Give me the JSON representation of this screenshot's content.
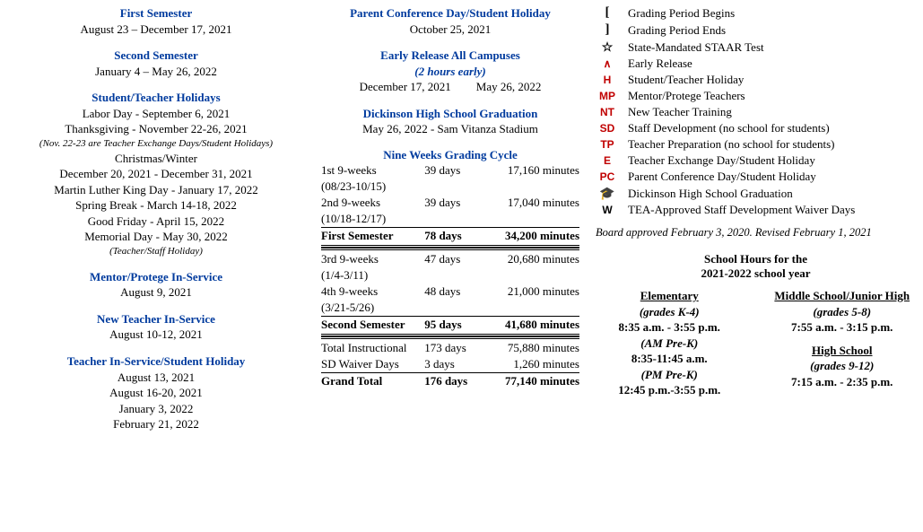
{
  "left": {
    "sem1": {
      "title": "First Semester",
      "range": "August 23 – December 17, 2021"
    },
    "sem2": {
      "title": "Second Semester",
      "range": "January 4 – May 26, 2022"
    },
    "holidays": {
      "title": "Student/Teacher Holidays",
      "lines": [
        "Labor Day - September 6, 2021",
        "Thanksgiving - November 22-26, 2021"
      ],
      "note": "(Nov. 22-23 are Teacher Exchange Days/Student Holidays)",
      "more": [
        "Christmas/Winter",
        "December 20, 2021 - December 31, 2021",
        "Martin Luther King Day - January 17, 2022",
        "Spring Break - March 14-18, 2022",
        "Good Friday - April 15, 2022",
        "Memorial Day - May 30, 2022"
      ],
      "note2": "(Teacher/Staff Holiday)"
    },
    "mentor": {
      "title": "Mentor/Protege In-Service",
      "date": "August 9, 2021"
    },
    "newteacher": {
      "title": "New Teacher In-Service",
      "date": "August 10-12, 2021"
    },
    "inservice": {
      "title": "Teacher In-Service/Student Holiday",
      "dates": [
        "August 13, 2021",
        "August 16-20, 2021",
        "January 3, 2022",
        "February 21, 2022"
      ]
    }
  },
  "mid": {
    "pcd": {
      "title": "Parent Conference Day/Student Holiday",
      "date": "October 25, 2021"
    },
    "early": {
      "title": "Early Release All Campuses",
      "sub": "(2 hours early)",
      "d1": "December 17, 2021",
      "d2": "May 26, 2022"
    },
    "grad": {
      "title": "Dickinson High School Graduation",
      "date": "May 26, 2022 - Sam Vitanza Stadium"
    },
    "cycle": {
      "title": "Nine Weeks Grading Cycle"
    },
    "rows": {
      "r1a": {
        "c1": "1st 9-weeks",
        "c2": "39 days",
        "c3": "17,160 minutes"
      },
      "r1b": {
        "c1": "(08/23-10/15)"
      },
      "r2a": {
        "c1": "2nd 9-weeks",
        "c2": "39 days",
        "c3": "17,040 minutes"
      },
      "r2b": {
        "c1": "(10/18-12/17)"
      },
      "s1": {
        "c1": "First Semester",
        "c2": "78 days",
        "c3": "34,200 minutes"
      },
      "r3a": {
        "c1": "3rd 9-weeks",
        "c2": "47 days",
        "c3": "20,680 minutes"
      },
      "r3b": {
        "c1": "(1/4-3/11)"
      },
      "r4a": {
        "c1": "4th 9-weeks",
        "c2": "48 days",
        "c3": "21,000 minutes"
      },
      "r4b": {
        "c1": "(3/21-5/26)"
      },
      "s2": {
        "c1": "Second Semester",
        "c2": "95 days",
        "c3": "41,680 minutes"
      },
      "ti": {
        "c1": "Total Instructional",
        "c2": "173 days",
        "c3": "75,880 minutes"
      },
      "sd": {
        "c1": "SD Waiver Days",
        "c2": "3 days",
        "c3": "1,260 minutes"
      },
      "gt": {
        "c1": "Grand Total",
        "c2": "176 days",
        "c3": "77,140 minutes"
      }
    }
  },
  "legend": {
    "gpb": {
      "code": "[",
      "text": "Grading Period Begins"
    },
    "gpe": {
      "code": "]",
      "text": "Grading Period Ends"
    },
    "star": {
      "code": "☆",
      "text": "State-Mandated STAAR Test"
    },
    "er": {
      "code": "∧",
      "text": "Early Release"
    },
    "h": {
      "code": "H",
      "text": "Student/Teacher Holiday"
    },
    "mp": {
      "code": "MP",
      "text": "Mentor/Protege Teachers"
    },
    "nt": {
      "code": "NT",
      "text": "New Teacher Training"
    },
    "sd": {
      "code": "SD",
      "text": "Staff Development (no school for students)"
    },
    "tp": {
      "code": "TP",
      "text": "Teacher Preparation (no school for students)"
    },
    "e": {
      "code": "E",
      "text": "Teacher Exchange Day/Student Holiday"
    },
    "pc": {
      "code": "PC",
      "text": "Parent Conference Day/Student Holiday"
    },
    "grad": {
      "code": "🎓",
      "text": "Dickinson High School Graduation"
    },
    "w": {
      "code": "W",
      "text": "TEA-Approved Staff Development Waiver Days"
    }
  },
  "approved": "Board approved February 3, 2020. Revised February 1, 2021",
  "hours": {
    "title1": "School Hours for the",
    "title2": "2021-2022 school year",
    "elem": {
      "name": "Elementary",
      "grades": "(grades K-4)",
      "time": "8:35 a.m. - 3:55 p.m.",
      "am": "(AM Pre-K)",
      "amt": "8:35-11:45 a.m.",
      "pm": "(PM Pre-K)",
      "pmt": "12:45 p.m.-3:55 p.m."
    },
    "ms": {
      "name": "Middle School/Junior High",
      "grades": "(grades 5-8)",
      "time": "7:55 a.m. - 3:15 p.m."
    },
    "hs": {
      "name": "High School",
      "grades": "(grades 9-12)",
      "time": "7:15 a.m. - 2:35 p.m."
    }
  }
}
